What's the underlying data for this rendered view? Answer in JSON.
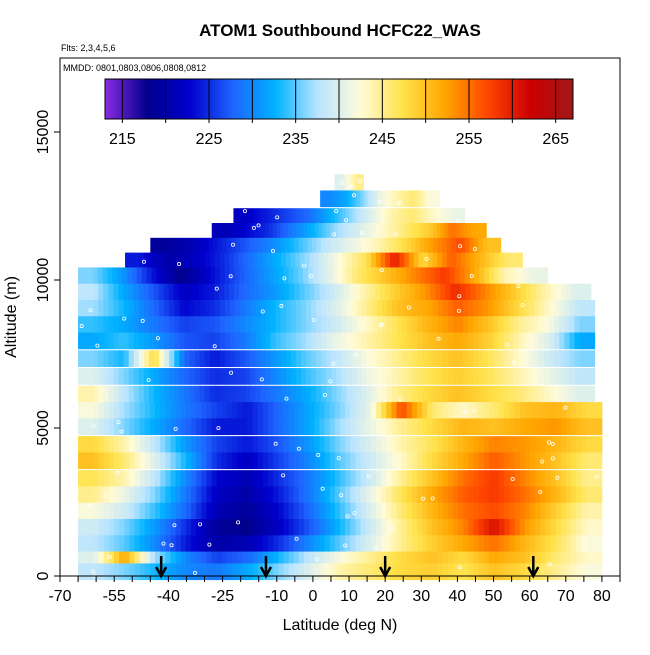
{
  "chart_data": {
    "type": "heatmap",
    "title": "ATOM1 Southbound HCFC22_WAS",
    "subtitle_flights": "Flts: 2,3,4,5,6",
    "subtitle_dates": "MMDD: 0801,0803,0806,0808,0812",
    "xlabel": "Latitude (deg N)",
    "ylabel": "Altitude (m)",
    "xlim": [
      -70,
      85
    ],
    "ylim": [
      0,
      17500
    ],
    "x_tick_labels": [
      "-70",
      "-55",
      "-40",
      "-25",
      "-10",
      "0",
      "10",
      "20",
      "30",
      "40",
      "50",
      "60",
      "70",
      "80"
    ],
    "x_tick_values": [
      -70,
      -55,
      -40,
      -25,
      -10,
      0,
      10,
      20,
      30,
      40,
      50,
      60,
      70,
      80
    ],
    "x_minor_ticks": [
      -65,
      -60,
      -50,
      -45,
      -35,
      -30,
      -20,
      -15,
      -5,
      5,
      15,
      25,
      35,
      45,
      55,
      65,
      75,
      85
    ],
    "y_tick_labels": [
      "0",
      "5000",
      "10000",
      "15000"
    ],
    "y_tick_values": [
      0,
      5000,
      10000,
      15000
    ],
    "colorbar": {
      "min": 213,
      "max": 267,
      "tick_labels": [
        "215",
        "225",
        "235",
        "245",
        "255",
        "265"
      ],
      "tick_values": [
        215,
        225,
        235,
        245,
        255,
        265
      ],
      "divisions": [
        215,
        220,
        225,
        230,
        235,
        240,
        245,
        250,
        255,
        260,
        265
      ],
      "colors": [
        "#8a2be2",
        "#00008b",
        "#0000cd",
        "#1e64ff",
        "#00b2ff",
        "#b9e4ff",
        "#fffbd8",
        "#ffe24a",
        "#ffa500",
        "#ff4500",
        "#cc0000",
        "#a01818"
      ]
    },
    "arrows_latitude": [
      -42,
      -13,
      20,
      61
    ],
    "levels": [
      {
        "alt": 13300,
        "lat": [
          6,
          14
        ],
        "values": [
          240,
          245
        ]
      },
      {
        "alt": 12750,
        "lat": [
          2,
          35
        ],
        "values": [
          230,
          232,
          236,
          241,
          244,
          246,
          242
        ]
      },
      {
        "alt": 12150,
        "lat": [
          -22,
          42
        ],
        "values": [
          222,
          224,
          226,
          228,
          232,
          236,
          240,
          244,
          246,
          243,
          241
        ]
      },
      {
        "alt": 11650,
        "lat": [
          -28,
          48
        ],
        "values": [
          221,
          223,
          225,
          229,
          233,
          237,
          240,
          243,
          246,
          249,
          255,
          252
        ]
      },
      {
        "alt": 11150,
        "lat": [
          -45,
          52
        ],
        "values": [
          219,
          221,
          224,
          227,
          230,
          234,
          238,
          241,
          244,
          248,
          253,
          257,
          250
        ]
      },
      {
        "alt": 10650,
        "lat": [
          -52,
          58
        ],
        "values": [
          224,
          220,
          222,
          225,
          229,
          233,
          237,
          242,
          247,
          260,
          248,
          256,
          251,
          246
        ]
      },
      {
        "alt": 10150,
        "lat": [
          -65,
          65
        ],
        "values": [
          236,
          231,
          224,
          218,
          223,
          227,
          231,
          235,
          240,
          246,
          250,
          254,
          258,
          252,
          244,
          241
        ]
      },
      {
        "alt": 9600,
        "lat": [
          -65,
          77
        ],
        "values": [
          238,
          232,
          227,
          222,
          224,
          228,
          231,
          235,
          239,
          244,
          249,
          253,
          259,
          254,
          249,
          244,
          240
        ]
      },
      {
        "alt": 9050,
        "lat": [
          -65,
          78
        ],
        "values": [
          237,
          233,
          228,
          223,
          225,
          229,
          233,
          236,
          240,
          245,
          250,
          252,
          256,
          253,
          248,
          243,
          238
        ]
      },
      {
        "alt": 8500,
        "lat": [
          -65,
          78
        ],
        "values": [
          234,
          232,
          229,
          226,
          227,
          230,
          233,
          236,
          239,
          243,
          247,
          251,
          254,
          250,
          245,
          242,
          236
        ]
      },
      {
        "alt": 7950,
        "lat": [
          -65,
          78
        ],
        "values": [
          232,
          234,
          231,
          227,
          226,
          229,
          234,
          237,
          241,
          244,
          247,
          250,
          252,
          249,
          244,
          240,
          232
        ]
      },
      {
        "alt": 7350,
        "lat": [
          -65,
          78
        ],
        "values": [
          236,
          233,
          248,
          228,
          224,
          227,
          231,
          235,
          238,
          242,
          245,
          248,
          250,
          247,
          243,
          239,
          236
        ]
      },
      {
        "alt": 6750,
        "lat": [
          -65,
          78
        ],
        "values": [
          240,
          236,
          232,
          228,
          225,
          226,
          230,
          234,
          237,
          241,
          244,
          247,
          249,
          247,
          244,
          241,
          238
        ]
      },
      {
        "alt": 6150,
        "lat": [
          -65,
          78
        ],
        "values": [
          244,
          238,
          233,
          229,
          225,
          226,
          229,
          232,
          236,
          240,
          245,
          248,
          250,
          248,
          246,
          243,
          240
        ]
      },
      {
        "alt": 5600,
        "lat": [
          -65,
          80
        ],
        "values": [
          242,
          237,
          233,
          229,
          226,
          224,
          228,
          232,
          236,
          241,
          257,
          246,
          243,
          246,
          250,
          251,
          248
        ]
      },
      {
        "alt": 5050,
        "lat": [
          -65,
          80
        ],
        "values": [
          240,
          236,
          232,
          228,
          224,
          224,
          228,
          232,
          237,
          241,
          245,
          248,
          251,
          250,
          252,
          253,
          250
        ]
      },
      {
        "alt": 4450,
        "lat": [
          -65,
          80
        ],
        "values": [
          248,
          244,
          238,
          231,
          226,
          224,
          227,
          231,
          236,
          240,
          244,
          247,
          251,
          254,
          253,
          251,
          248
        ]
      },
      {
        "alt": 3900,
        "lat": [
          -65,
          80
        ],
        "values": [
          250,
          246,
          240,
          233,
          225,
          222,
          226,
          230,
          235,
          239,
          243,
          248,
          252,
          256,
          253,
          250,
          246
        ]
      },
      {
        "alt": 3300,
        "lat": [
          -65,
          80
        ],
        "values": [
          247,
          244,
          238,
          230,
          223,
          221,
          225,
          229,
          234,
          239,
          245,
          250,
          255,
          258,
          254,
          250,
          245
        ]
      },
      {
        "alt": 2750,
        "lat": [
          -65,
          80
        ],
        "values": [
          245,
          241,
          236,
          229,
          222,
          220,
          224,
          229,
          235,
          241,
          247,
          252,
          256,
          258,
          255,
          251,
          246
        ]
      },
      {
        "alt": 2200,
        "lat": [
          -65,
          80
        ],
        "values": [
          242,
          239,
          234,
          228,
          221,
          219,
          223,
          228,
          234,
          240,
          246,
          251,
          255,
          257,
          254,
          249,
          244
        ]
      },
      {
        "alt": 1650,
        "lat": [
          -65,
          80
        ],
        "values": [
          239,
          236,
          231,
          225,
          219,
          218,
          222,
          227,
          233,
          239,
          245,
          250,
          254,
          261,
          253,
          248,
          243
        ]
      },
      {
        "alt": 1100,
        "lat": [
          -65,
          80
        ],
        "values": [
          238,
          235,
          230,
          224,
          220,
          221,
          225,
          230,
          235,
          240,
          245,
          249,
          252,
          255,
          251,
          247,
          242
        ]
      },
      {
        "alt": 550,
        "lat": [
          -65,
          80
        ],
        "values": [
          240,
          252,
          237,
          230,
          226,
          228,
          233,
          238,
          242,
          245,
          248,
          250,
          248,
          252,
          250,
          246,
          243
        ]
      },
      {
        "alt": 150,
        "lat": [
          -65,
          80
        ],
        "values": [
          238,
          236,
          233,
          230,
          229,
          232,
          236,
          240,
          244,
          246,
          248,
          249,
          247,
          250,
          248,
          245,
          242
        ]
      }
    ]
  }
}
